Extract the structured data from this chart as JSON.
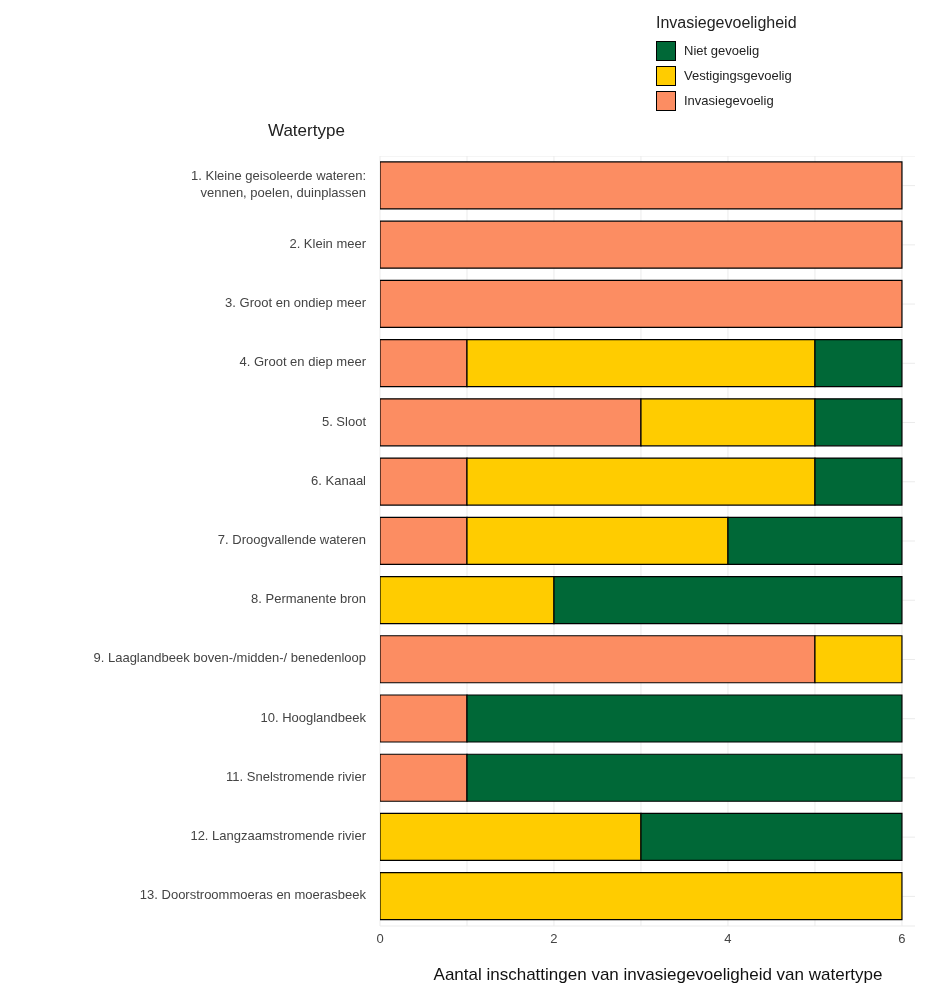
{
  "chart_data": {
    "type": "bar",
    "orientation": "horizontal",
    "stacked": true,
    "ylabel": "Watertype",
    "xlabel": "Aantal inschattingen van invasiegevoeligheid van watertype",
    "legend_title": "Invasiegevoeligheid",
    "categories": [
      "1. Kleine geisoleerde wateren:\nvennen, poelen, duinplassen",
      "2. Klein meer",
      "3. Groot en ondiep meer",
      "4. Groot en diep meer",
      "5. Sloot",
      "6. Kanaal",
      "7. Droogvallende wateren",
      "8. Permanente bron",
      "9. Laaglandbeek boven-/midden-/ benedenloop",
      "10. Hooglandbeek",
      "11. Snelstromende rivier",
      "12. Langzaamstromende rivier",
      "13. Doorstroommoeras en moerasbeek"
    ],
    "series": [
      {
        "name": "Invasiegevoelig",
        "color": "#fc8d62",
        "values": [
          6,
          6,
          6,
          1,
          3,
          1,
          1,
          0,
          5,
          1,
          1,
          0,
          0
        ]
      },
      {
        "name": "Vestigingsgevoelig",
        "color": "#ffcc00",
        "values": [
          0,
          0,
          0,
          4,
          2,
          4,
          3,
          2,
          1,
          0,
          0,
          3,
          6
        ]
      },
      {
        "name": "Niet gevoelig",
        "color": "#006837",
        "values": [
          0,
          0,
          0,
          1,
          1,
          1,
          2,
          4,
          0,
          5,
          5,
          3,
          0
        ]
      }
    ],
    "xlim": [
      0,
      6.15
    ],
    "xticks": [
      0,
      2,
      4,
      6
    ],
    "grid": true,
    "legend": "top right"
  }
}
